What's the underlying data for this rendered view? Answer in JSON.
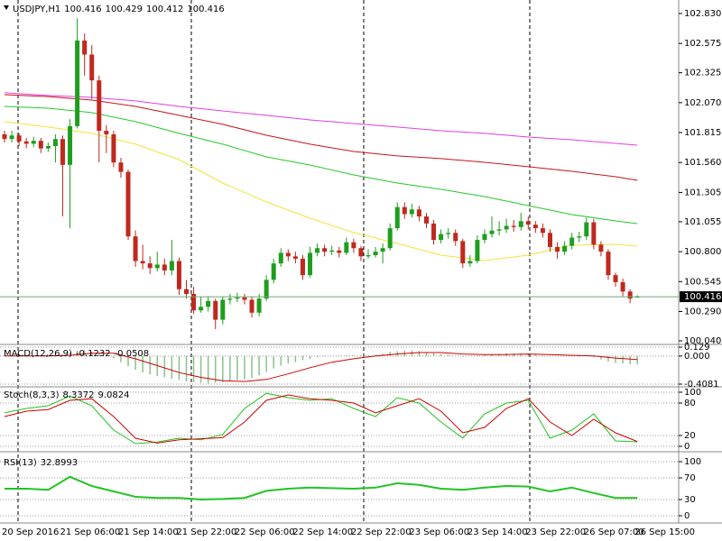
{
  "chart_data": [
    {
      "type": "candlestick",
      "title": "USDJPY,H1",
      "categories": [
        "20 Sep 2016",
        null,
        null,
        null,
        null,
        null,
        null,
        null,
        "21 Sep 06:00",
        null,
        null,
        null,
        null,
        null,
        null,
        null,
        "21 Sep 14:00",
        null,
        null,
        null,
        null,
        null,
        null,
        null,
        "21 Sep 22:00",
        null,
        null,
        null,
        null,
        null,
        null,
        null,
        "22 Sep 06:00",
        null,
        null,
        null,
        null,
        null,
        null,
        null,
        "22 Sep 14:00",
        null,
        null,
        null,
        null,
        null,
        null,
        null,
        "22 Sep 22:00",
        null,
        null,
        null,
        null,
        null,
        null,
        null,
        "23 Sep 06:00",
        null,
        null,
        null,
        null,
        null,
        null,
        null,
        "23 Sep 14:00",
        null,
        null,
        null,
        null,
        null,
        null,
        null,
        "23 Sep 22:00",
        null,
        null,
        null,
        null,
        null,
        null,
        null,
        "26 Sep 07:00",
        null,
        null,
        null,
        null,
        null,
        null,
        "26 Sep 15:00"
      ],
      "open": [
        101.8,
        101.76,
        101.79,
        101.74,
        101.72,
        101.745,
        101.68,
        101.7,
        101.76,
        101.54,
        101.87,
        102.6,
        102.48,
        102.26,
        101.83,
        101.8,
        101.56,
        101.48,
        100.93,
        100.72,
        100.7,
        100.66,
        100.69,
        100.64,
        100.72,
        100.48,
        100.44,
        100.3,
        100.33,
        100.38,
        100.22,
        100.39,
        100.4,
        100.41,
        100.39,
        100.28,
        100.4,
        100.56,
        100.7,
        100.79,
        100.76,
        100.74,
        100.6,
        100.79,
        100.83,
        100.8,
        100.81,
        100.79,
        100.88,
        100.83,
        100.76,
        100.77,
        100.8,
        100.83,
        101.0,
        101.18,
        101.12,
        101.16,
        101.1,
        101.04,
        100.9,
        100.95,
        100.96,
        100.89,
        100.7,
        100.72,
        100.9,
        100.95,
        100.98,
        100.99,
        101.02,
        101.01,
        101.06,
        101.03,
        101.0,
        100.96,
        100.84,
        100.8,
        100.85,
        100.92,
        100.93,
        101.05,
        100.86,
        100.8,
        100.6,
        100.54,
        100.46,
        100.416
      ],
      "high": [
        101.83,
        101.83,
        101.81,
        101.77,
        101.78,
        101.77,
        101.73,
        101.8,
        101.79,
        101.93,
        102.79,
        102.66,
        102.56,
        102.3,
        101.88,
        101.83,
        101.6,
        101.5,
        100.98,
        100.86,
        100.76,
        100.8,
        100.74,
        100.9,
        100.75,
        100.56,
        100.5,
        100.42,
        100.42,
        100.4,
        100.42,
        100.44,
        100.45,
        100.44,
        100.42,
        100.44,
        100.6,
        100.74,
        100.83,
        100.82,
        100.8,
        100.77,
        100.84,
        100.87,
        100.86,
        100.85,
        100.84,
        100.92,
        100.91,
        100.85,
        100.82,
        100.84,
        100.87,
        101.04,
        101.22,
        101.22,
        101.21,
        101.19,
        101.13,
        101.07,
        100.99,
        101.0,
        100.99,
        100.91,
        100.77,
        100.94,
        100.99,
        101.1,
        101.06,
        101.08,
        101.07,
        101.13,
        101.1,
        101.06,
        101.04,
        100.99,
        100.88,
        100.89,
        100.96,
        100.97,
        101.09,
        101.08,
        100.89,
        100.82,
        100.62,
        100.57,
        100.48,
        100.429
      ],
      "low": [
        101.73,
        101.73,
        101.7,
        101.68,
        101.69,
        101.64,
        101.65,
        101.56,
        101.1,
        101.0,
        101.85,
        102.3,
        102.1,
        101.56,
        101.64,
        101.52,
        101.43,
        100.9,
        100.67,
        100.65,
        100.61,
        100.63,
        100.6,
        100.6,
        100.43,
        100.4,
        100.27,
        100.28,
        100.29,
        100.14,
        100.18,
        100.35,
        100.37,
        100.35,
        100.24,
        100.25,
        100.38,
        100.53,
        100.67,
        100.72,
        100.7,
        100.56,
        100.58,
        100.76,
        100.76,
        100.77,
        100.75,
        100.77,
        100.79,
        100.72,
        100.74,
        100.75,
        100.7,
        100.81,
        100.98,
        101.08,
        101.09,
        101.06,
        101.0,
        100.86,
        100.87,
        100.91,
        100.85,
        100.66,
        100.67,
        100.7,
        100.87,
        100.92,
        100.94,
        100.96,
        100.97,
        100.98,
        100.99,
        100.96,
        100.92,
        100.8,
        100.74,
        100.77,
        100.82,
        100.88,
        100.9,
        100.82,
        100.76,
        100.56,
        100.5,
        100.42,
        100.36,
        100.412
      ],
      "close": [
        101.76,
        101.79,
        101.74,
        101.72,
        101.745,
        101.68,
        101.7,
        101.76,
        101.54,
        101.87,
        102.6,
        102.48,
        102.26,
        101.83,
        101.8,
        101.56,
        101.48,
        100.93,
        100.72,
        100.7,
        100.66,
        100.69,
        100.64,
        100.72,
        100.48,
        100.44,
        100.3,
        100.33,
        100.38,
        100.22,
        100.39,
        100.4,
        100.41,
        100.39,
        100.28,
        100.4,
        100.56,
        100.7,
        100.79,
        100.76,
        100.74,
        100.6,
        100.79,
        100.83,
        100.8,
        100.81,
        100.79,
        100.88,
        100.83,
        100.76,
        100.77,
        100.8,
        100.83,
        101.0,
        101.18,
        101.12,
        101.16,
        101.1,
        101.04,
        100.9,
        100.95,
        100.96,
        100.89,
        100.7,
        100.72,
        100.9,
        100.95,
        100.98,
        100.99,
        101.02,
        101.01,
        101.06,
        101.03,
        101.0,
        100.96,
        100.84,
        100.8,
        100.85,
        100.92,
        100.93,
        101.05,
        100.86,
        100.8,
        100.6,
        100.54,
        100.46,
        100.4,
        100.416
      ],
      "up_color": "#1e9e1e",
      "down_color": "#c0281e",
      "series": [
        {
          "color": "#e23ee2",
          "x": [
            0,
            6,
            12,
            18,
            24,
            30,
            36,
            42,
            48,
            54,
            60,
            66,
            72,
            78,
            84,
            87
          ],
          "values": [
            102.154,
            102.131,
            102.115,
            102.085,
            102.038,
            102.0,
            101.962,
            101.923,
            101.892,
            101.862,
            101.831,
            101.808,
            101.777,
            101.754,
            101.723,
            101.708
          ]
        },
        {
          "color": "#c8141e",
          "x": [
            0,
            6,
            12,
            18,
            24,
            30,
            36,
            42,
            48,
            54,
            60,
            66,
            72,
            78,
            84,
            87
          ],
          "values": [
            102.138,
            102.122,
            102.092,
            102.038,
            101.962,
            101.885,
            101.792,
            101.716,
            101.654,
            101.616,
            101.593,
            101.562,
            101.524,
            101.485,
            101.439,
            101.408
          ]
        },
        {
          "color": "#28c828",
          "x": [
            0,
            6,
            12,
            18,
            24,
            30,
            36,
            42,
            48,
            54,
            60,
            66,
            72,
            78,
            84,
            87
          ],
          "values": [
            102.038,
            102.023,
            101.985,
            101.908,
            101.808,
            101.716,
            101.608,
            101.539,
            101.454,
            101.385,
            101.331,
            101.27,
            101.193,
            101.116,
            101.062,
            101.039
          ]
        },
        {
          "color": "#f2e23a",
          "x": [
            0,
            6,
            12,
            18,
            24,
            30,
            36,
            42,
            48,
            54,
            60,
            66,
            72,
            78,
            84,
            87
          ],
          "values": [
            101.908,
            101.862,
            101.808,
            101.716,
            101.585,
            101.385,
            101.224,
            101.085,
            100.962,
            100.87,
            100.77,
            100.724,
            100.77,
            100.855,
            100.862,
            100.847
          ]
        }
      ],
      "current_price": 100.416,
      "ylim": [
        100.017,
        102.945
      ],
      "yticks": [
        {
          "value": 102.83,
          "label": "102.830"
        },
        102.575,
        102.325,
        {
          "value": 102.07,
          "label": "102.070"
        },
        101.815,
        {
          "value": 101.56,
          "label": "101.560"
        },
        101.305,
        101.055,
        {
          "value": 100.8,
          "label": "100.800"
        },
        100.545,
        {
          "value": 100.29,
          "label": "100.290"
        },
        {
          "value": 100.04,
          "label": "100.040"
        }
      ],
      "grid": false
    },
    {
      "type": "macd",
      "title": "MACD(12,26,9)",
      "color": "#8cc08c",
      "values": [
        0.01,
        0.0,
        -0.01,
        -0.01,
        -0.01,
        -0.01,
        0.0,
        -0.01,
        0.02,
        0.05,
        0.08,
        0.08,
        0.06,
        0.04,
        0.01,
        -0.03,
        -0.09,
        -0.15,
        -0.2,
        -0.24,
        -0.27,
        -0.29,
        -0.31,
        -0.33,
        -0.35,
        -0.37,
        -0.38,
        -0.39,
        -0.4,
        -0.39,
        -0.38,
        -0.37,
        -0.35,
        -0.34,
        -0.32,
        -0.28,
        -0.23,
        -0.18,
        -0.14,
        -0.11,
        -0.09,
        -0.06,
        -0.04,
        -0.02,
        -0.01,
        0.0,
        0.01,
        0.01,
        0.01,
        0.01,
        0.01,
        0.01,
        0.03,
        0.06,
        0.07,
        0.08,
        0.08,
        0.07,
        0.05,
        0.04,
        0.03,
        0.02,
        0.0,
        -0.01,
        0.0,
        0.01,
        0.02,
        0.03,
        0.03,
        0.04,
        0.04,
        0.04,
        0.04,
        0.03,
        0.01,
        0.0,
        0.0,
        0.0,
        0.01,
        0.02,
        0.0,
        -0.02,
        -0.05,
        -0.08,
        -0.1,
        -0.11,
        -0.12,
        -0.1232
      ],
      "series": [
        {
          "color": "#d00000",
          "x": [
            0,
            3,
            6,
            9,
            12,
            15,
            18,
            21,
            24,
            27,
            30,
            33,
            36,
            39,
            42,
            45,
            48,
            51,
            54,
            57,
            60,
            63,
            66,
            69,
            72,
            75,
            78,
            81,
            84,
            87
          ],
          "values": [
            0.0,
            0.0,
            0.0,
            0.01,
            0.04,
            0.04,
            -0.04,
            -0.14,
            -0.24,
            -0.31,
            -0.36,
            -0.37,
            -0.34,
            -0.26,
            -0.17,
            -0.09,
            -0.04,
            0.0,
            0.03,
            0.05,
            0.05,
            0.03,
            0.02,
            0.02,
            0.03,
            0.02,
            0.01,
            0.0,
            -0.03,
            -0.0508
          ]
        }
      ],
      "ylim": [
        -0.4081,
        0.129
      ],
      "yticks": [
        0.129,
        {
          "value": 0,
          "label": "0.000"
        },
        -0.4081
      ],
      "grid": true
    },
    {
      "type": "line",
      "title": "Stoch(8,3,3)",
      "series": [
        {
          "color": "#22c422",
          "x": [
            0,
            3,
            6,
            9,
            12,
            15,
            18,
            21,
            24,
            27,
            30,
            33,
            36,
            39,
            42,
            45,
            48,
            51,
            54,
            57,
            60,
            63,
            66,
            69,
            72,
            75,
            78,
            81,
            84,
            87
          ],
          "values": [
            62,
            70,
            75,
            93,
            75,
            30,
            5,
            8,
            15,
            12,
            22,
            70,
            98,
            90,
            85,
            88,
            70,
            55,
            90,
            80,
            45,
            15,
            60,
            80,
            85,
            15,
            30,
            60,
            10,
            8.3372
          ]
        },
        {
          "color": "#d00000",
          "x": [
            0,
            3,
            6,
            9,
            12,
            15,
            18,
            21,
            24,
            27,
            30,
            33,
            36,
            39,
            42,
            45,
            48,
            51,
            54,
            57,
            60,
            63,
            66,
            69,
            72,
            75,
            78,
            81,
            84,
            87
          ],
          "values": [
            55,
            65,
            68,
            85,
            88,
            55,
            15,
            6,
            12,
            14,
            16,
            45,
            85,
            95,
            88,
            85,
            80,
            62,
            75,
            88,
            65,
            25,
            35,
            70,
            88,
            45,
            20,
            50,
            25,
            9.0824
          ]
        }
      ],
      "ylim": [
        0,
        100
      ],
      "yticks": [
        100,
        80,
        20,
        0
      ],
      "grid": true
    },
    {
      "type": "line",
      "title": "RSI(13)",
      "series": [
        {
          "color": "#22c422",
          "x": [
            0,
            3,
            6,
            9,
            12,
            15,
            18,
            21,
            24,
            27,
            30,
            33,
            36,
            39,
            42,
            45,
            48,
            51,
            54,
            57,
            60,
            63,
            66,
            69,
            72,
            75,
            78,
            81,
            84,
            87
          ],
          "values": [
            50,
            50,
            48,
            72,
            55,
            45,
            35,
            33,
            33,
            30,
            31,
            33,
            46,
            50,
            52,
            51,
            50,
            52,
            60,
            57,
            50,
            48,
            52,
            55,
            54,
            45,
            52,
            42,
            33,
            32.8993
          ]
        }
      ],
      "ylim": [
        0,
        100
      ],
      "yticks": [
        100,
        70,
        30,
        0
      ],
      "grid": true
    }
  ]
}
